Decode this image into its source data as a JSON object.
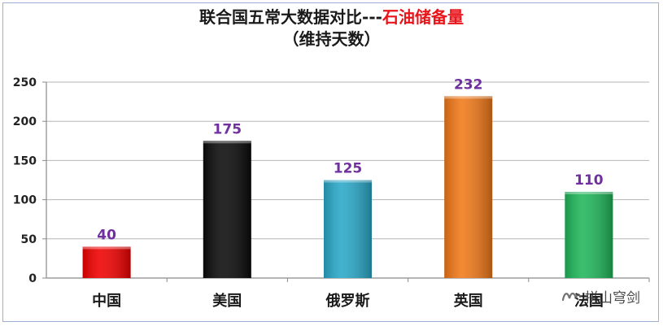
{
  "title": {
    "main": "联合国五常大数据对比---",
    "highlight": "石油储备量",
    "subtitle": "（维持天数）"
  },
  "colors": {
    "highlight": "#e8151b",
    "data_label": "#7030a0"
  },
  "watermark": {
    "icon": "wechat-channel-icon",
    "text": "拼山穹剑"
  },
  "chart_data": {
    "type": "bar",
    "categories": [
      "中国",
      "美国",
      "俄罗斯",
      "英国",
      "法国"
    ],
    "values": [
      40,
      175,
      125,
      232,
      110
    ],
    "bar_colors": [
      "#f00000",
      "#0a0a0a",
      "#29a8c8",
      "#f07818",
      "#1fb65a"
    ],
    "ylim": [
      0,
      250
    ],
    "yticks": [
      0,
      50,
      100,
      150,
      200,
      250
    ],
    "grid": true
  }
}
